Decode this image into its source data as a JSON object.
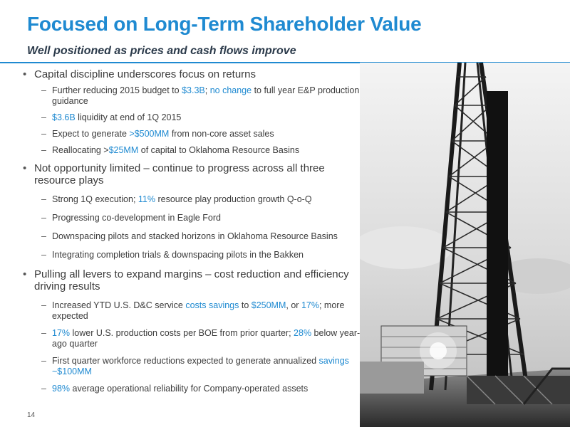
{
  "slide": {
    "title": "Focused on Long-Term Shareholder Value",
    "subtitle": "Well positioned as prices and cash flows improve",
    "page_number": "14"
  },
  "colors": {
    "accent": "#1f8ad1",
    "text": "#3b3b3b"
  },
  "image": {
    "icon": "drilling-rig-photo"
  },
  "bullets": [
    {
      "text": "Capital discipline underscores focus on returns",
      "subs": [
        [
          {
            "t": "Further reducing 2015 budget to "
          },
          {
            "t": "$3.3B",
            "hl": true
          },
          {
            "t": "; "
          },
          {
            "t": "no change",
            "hl": true
          },
          {
            "t": " to full year E&P production guidance"
          }
        ],
        [
          {
            "t": "$3.6B",
            "hl": true
          },
          {
            "t": " liquidity at end of 1Q 2015"
          }
        ],
        [
          {
            "t": "Expect to generate "
          },
          {
            "t": ">$500MM",
            "hl": true
          },
          {
            "t": " from non-core asset sales"
          }
        ],
        [
          {
            "t": "Reallocating >"
          },
          {
            "t": "$25MM",
            "hl": true
          },
          {
            "t": " of capital to Oklahoma Resource Basins"
          }
        ]
      ]
    },
    {
      "text": "Not opportunity limited – continue to progress across all three resource plays",
      "subs": [
        [
          {
            "t": "Strong 1Q execution; "
          },
          {
            "t": "11%",
            "hl": true
          },
          {
            "t": " resource play production growth Q-o-Q"
          }
        ],
        [
          {
            "t": "Progressing co-development in Eagle Ford"
          }
        ],
        [
          {
            "t": "Downspacing pilots and stacked horizons in Oklahoma Resource Basins"
          }
        ],
        [
          {
            "t": "Integrating completion trials & downspacing pilots in the Bakken"
          }
        ]
      ]
    },
    {
      "text": "Pulling all levers to expand margins – cost reduction and efficiency driving results",
      "subs": [
        [
          {
            "t": "Increased YTD U.S. D&C service "
          },
          {
            "t": "costs savings",
            "hl": true
          },
          {
            "t": " to "
          },
          {
            "t": "$250MM",
            "hl": true
          },
          {
            "t": ", or "
          },
          {
            "t": "17%",
            "hl": true
          },
          {
            "t": "; more expected"
          }
        ],
        [
          {
            "t": "17%",
            "hl": true
          },
          {
            "t": " lower U.S. production costs per BOE from prior quarter; "
          },
          {
            "t": "28%",
            "hl": true
          },
          {
            "t": " below year-ago quarter"
          }
        ],
        [
          {
            "t": "First quarter workforce reductions expected to generate annualized "
          },
          {
            "t": "savings ~$100MM",
            "hl": true
          }
        ],
        [
          {
            "t": "98%",
            "hl": true
          },
          {
            "t": " average operational reliability for Company-operated assets"
          }
        ]
      ]
    }
  ]
}
